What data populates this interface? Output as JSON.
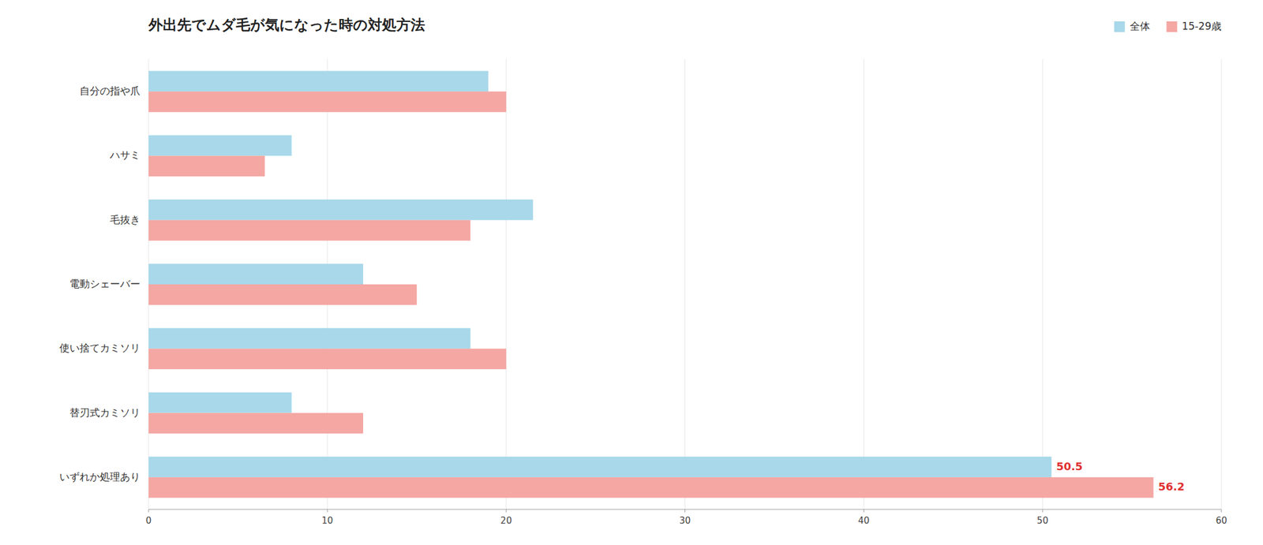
{
  "chart_data": {
    "type": "bar",
    "orientation": "horizontal",
    "title": "外出先でムダ毛が気になった時の対処方法",
    "categories": [
      "自分の指や爪",
      "ハサミ",
      "毛抜き",
      "電動シェーバー",
      "使い捨てカミソリ",
      "替刃式カミソリ",
      "いずれか処理あり"
    ],
    "series": [
      {
        "name": "全体",
        "color": "#a8d8ea",
        "values": [
          19.0,
          8.0,
          21.5,
          12.0,
          18.0,
          8.0,
          50.5
        ],
        "value_labels": [
          null,
          null,
          null,
          null,
          null,
          null,
          "50.5"
        ]
      },
      {
        "name": "15-29歳",
        "color": "#f4a7a3",
        "values": [
          20.0,
          6.5,
          18.0,
          15.0,
          20.0,
          12.0,
          56.2
        ],
        "value_labels": [
          null,
          null,
          null,
          null,
          null,
          null,
          "56.2"
        ]
      }
    ],
    "xlim": [
      0,
      60
    ],
    "xticks": [
      0,
      10,
      20,
      30,
      40,
      50,
      60
    ],
    "grid": true,
    "legend": "upper right",
    "data_labels": true
  }
}
